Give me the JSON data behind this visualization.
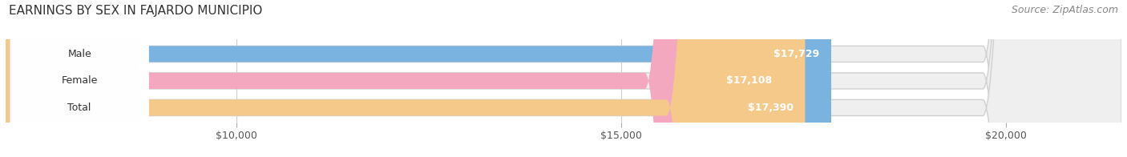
{
  "title": "EARNINGS BY SEX IN FAJARDO MUNICIPIO",
  "source": "Source: ZipAtlas.com",
  "categories": [
    "Male",
    "Female",
    "Total"
  ],
  "values": [
    17729,
    17108,
    17390
  ],
  "bar_colors": [
    "#7ab3e0",
    "#f4a8c0",
    "#f5c98a"
  ],
  "value_labels": [
    "$17,729",
    "$17,108",
    "$17,390"
  ],
  "xmin": 7000,
  "xmax": 21500,
  "xlim_left": 7000,
  "xlim_right": 21500,
  "xticks": [
    10000,
    15000,
    20000
  ],
  "xtick_labels": [
    "$10,000",
    "$15,000",
    "$20,000"
  ],
  "bg_color": "#ffffff",
  "bar_bg_color": "#efefef",
  "title_fontsize": 11,
  "source_fontsize": 9,
  "tick_fontsize": 9,
  "bar_label_fontsize": 9,
  "value_fontsize": 9
}
